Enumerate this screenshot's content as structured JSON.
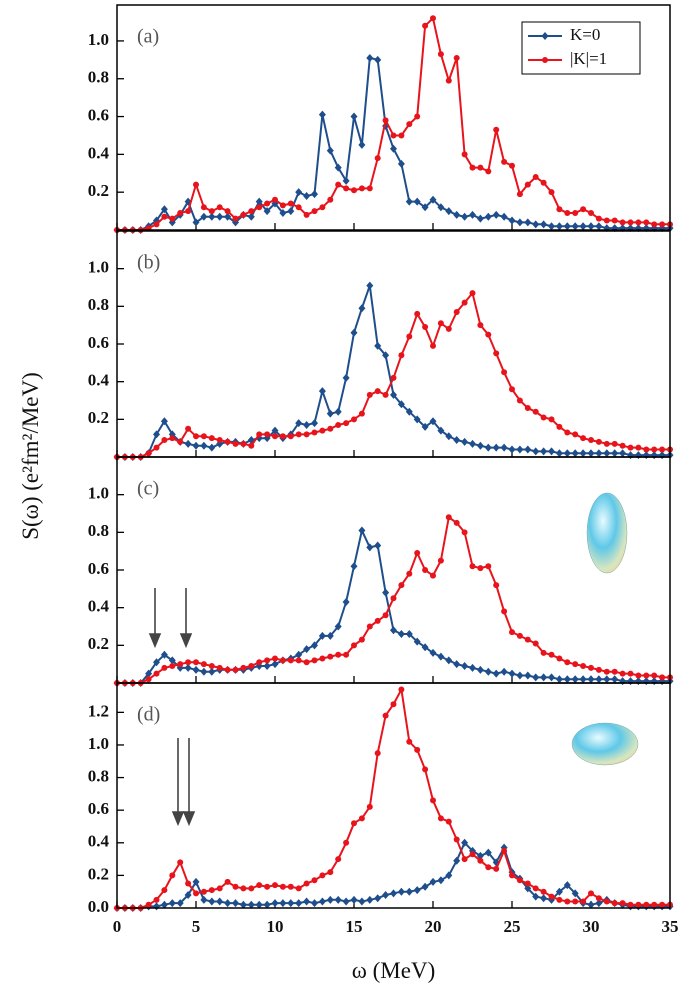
{
  "chart_data": [
    {
      "type": "line",
      "panel_label": "(a)",
      "ylabel": "S(ω) (e²fm²/MeV)",
      "legend": "upper right",
      "x": [
        0,
        0.5,
        1,
        1.5,
        2,
        2.5,
        3,
        3.5,
        4,
        4.5,
        5,
        5.5,
        6,
        6.5,
        7,
        7.5,
        8,
        8.5,
        9,
        9.5,
        10,
        10.5,
        11,
        11.5,
        12,
        12.5,
        13,
        13.5,
        14,
        14.5,
        15,
        15.5,
        16,
        16.5,
        17,
        17.5,
        18,
        18.5,
        19,
        19.5,
        20,
        20.5,
        21,
        21.5,
        22,
        22.5,
        23,
        23.5,
        24,
        24.5,
        25,
        25.5,
        26,
        26.5,
        27,
        27.5,
        28,
        28.5,
        29,
        29.5,
        30,
        30.5,
        31,
        31.5,
        32,
        32.5,
        33,
        33.5,
        34,
        34.5,
        35
      ],
      "xlim": [
        0,
        35
      ],
      "xticks": [
        0,
        5,
        10,
        15,
        20,
        25,
        30,
        35
      ],
      "ylim": [
        0,
        1.19
      ],
      "yticks": [
        0.2,
        0.4,
        0.6,
        0.8,
        {
          "value": 1,
          "label": "1.0"
        }
      ],
      "series": [
        {
          "name": "K=0",
          "color": "#1f4e8c",
          "marker": "diamond",
          "values": [
            0,
            0,
            0,
            0,
            0.02,
            0.05,
            0.11,
            0.04,
            0.08,
            0.15,
            0.04,
            0.07,
            0.07,
            0.07,
            0.07,
            0.04,
            0.08,
            0.07,
            0.15,
            0.1,
            0.14,
            0.09,
            0.1,
            0.2,
            0.18,
            0.19,
            0.61,
            0.42,
            0.33,
            0.26,
            0.6,
            0.45,
            0.91,
            0.9,
            0.55,
            0.43,
            0.35,
            0.15,
            0.15,
            0.12,
            0.16,
            0.12,
            0.1,
            0.08,
            0.07,
            0.08,
            0.06,
            0.07,
            0.08,
            0.07,
            0.05,
            0.04,
            0.04,
            0.03,
            0.03,
            0.02,
            0.02,
            0.02,
            0.02,
            0.02,
            0.02,
            0.02,
            0.01,
            0.01,
            0.01,
            0.01,
            0.01,
            0.01,
            0.01,
            0.01,
            0.01
          ]
        },
        {
          "name": "|K|=1",
          "color": "#e8141c",
          "marker": "circle",
          "values": [
            0,
            0,
            0,
            0,
            0.01,
            0.03,
            0.07,
            0.06,
            0.09,
            0.1,
            0.24,
            0.12,
            0.1,
            0.12,
            0.1,
            0.06,
            0.08,
            0.1,
            0.12,
            0.14,
            0.16,
            0.13,
            0.14,
            0.12,
            0.08,
            0.1,
            0.12,
            0.16,
            0.24,
            0.22,
            0.21,
            0.22,
            0.22,
            0.38,
            0.58,
            0.5,
            0.5,
            0.56,
            0.6,
            1.08,
            1.12,
            0.93,
            0.79,
            0.91,
            0.4,
            0.33,
            0.33,
            0.31,
            0.53,
            0.36,
            0.34,
            0.19,
            0.24,
            0.28,
            0.25,
            0.2,
            0.11,
            0.09,
            0.09,
            0.11,
            0.09,
            0.06,
            0.05,
            0.05,
            0.04,
            0.04,
            0.04,
            0.04,
            0.03,
            0.03,
            0.03
          ]
        }
      ]
    },
    {
      "type": "line",
      "panel_label": "(b)",
      "x": [
        0,
        0.5,
        1,
        1.5,
        2,
        2.5,
        3,
        3.5,
        4,
        4.5,
        5,
        5.5,
        6,
        6.5,
        7,
        7.5,
        8,
        8.5,
        9,
        9.5,
        10,
        10.5,
        11,
        11.5,
        12,
        12.5,
        13,
        13.5,
        14,
        14.5,
        15,
        15.5,
        16,
        16.5,
        17,
        17.5,
        18,
        18.5,
        19,
        19.5,
        20,
        20.5,
        21,
        21.5,
        22,
        22.5,
        23,
        23.5,
        24,
        24.5,
        25,
        25.5,
        26,
        26.5,
        27,
        27.5,
        28,
        28.5,
        29,
        29.5,
        30,
        30.5,
        31,
        31.5,
        32,
        32.5,
        33,
        33.5,
        34,
        34.5,
        35
      ],
      "xlim": [
        0,
        35
      ],
      "xticks": [
        0,
        5,
        10,
        15,
        20,
        25,
        30,
        35
      ],
      "ylim": [
        0,
        1.2
      ],
      "yticks": [
        0.2,
        0.4,
        0.6,
        0.8,
        {
          "value": 1,
          "label": "1.0"
        }
      ],
      "series": [
        {
          "color": "#1f4e8c",
          "marker": "diamond",
          "values": [
            0,
            0,
            0,
            0,
            0.02,
            0.12,
            0.19,
            0.12,
            0.08,
            0.07,
            0.06,
            0.06,
            0.05,
            0.07,
            0.08,
            0.08,
            0.07,
            0.09,
            0.1,
            0.1,
            0.14,
            0.1,
            0.12,
            0.18,
            0.17,
            0.18,
            0.35,
            0.23,
            0.24,
            0.42,
            0.66,
            0.79,
            0.91,
            0.59,
            0.54,
            0.33,
            0.28,
            0.24,
            0.2,
            0.16,
            0.19,
            0.14,
            0.11,
            0.09,
            0.08,
            0.07,
            0.06,
            0.05,
            0.05,
            0.05,
            0.04,
            0.04,
            0.04,
            0.03,
            0.03,
            0.03,
            0.02,
            0.02,
            0.02,
            0.02,
            0.02,
            0.02,
            0.02,
            0.02,
            0.02,
            0.01,
            0.01,
            0.01,
            0.01,
            0.01,
            0.01
          ]
        },
        {
          "color": "#e8141c",
          "marker": "circle",
          "values": [
            0,
            0,
            0,
            0,
            0.02,
            0.05,
            0.09,
            0.1,
            0.08,
            0.15,
            0.11,
            0.11,
            0.1,
            0.09,
            0.08,
            0.07,
            0.07,
            0.06,
            0.12,
            0.12,
            0.11,
            0.11,
            0.11,
            0.12,
            0.12,
            0.13,
            0.14,
            0.15,
            0.17,
            0.18,
            0.2,
            0.23,
            0.33,
            0.35,
            0.33,
            0.42,
            0.54,
            0.64,
            0.76,
            0.69,
            0.59,
            0.71,
            0.68,
            0.77,
            0.82,
            0.87,
            0.7,
            0.65,
            0.55,
            0.45,
            0.36,
            0.3,
            0.26,
            0.24,
            0.21,
            0.2,
            0.16,
            0.13,
            0.12,
            0.1,
            0.09,
            0.08,
            0.07,
            0.07,
            0.06,
            0.05,
            0.05,
            0.04,
            0.04,
            0.04,
            0.04
          ]
        }
      ]
    },
    {
      "type": "line",
      "panel_label": "(c)",
      "x": [
        0,
        0.5,
        1,
        1.5,
        2,
        2.5,
        3,
        3.5,
        4,
        4.5,
        5,
        5.5,
        6,
        6.5,
        7,
        7.5,
        8,
        8.5,
        9,
        9.5,
        10,
        10.5,
        11,
        11.5,
        12,
        12.5,
        13,
        13.5,
        14,
        14.5,
        15,
        15.5,
        16,
        16.5,
        17,
        17.5,
        18,
        18.5,
        19,
        19.5,
        20,
        20.5,
        21,
        21.5,
        22,
        22.5,
        23,
        23.5,
        24,
        24.5,
        25,
        25.5,
        26,
        26.5,
        27,
        27.5,
        28,
        28.5,
        29,
        29.5,
        30,
        30.5,
        31,
        31.5,
        32,
        32.5,
        33,
        33.5,
        34,
        34.5,
        35
      ],
      "xlim": [
        0,
        35
      ],
      "xticks": [
        0,
        5,
        10,
        15,
        20,
        25,
        30,
        35
      ],
      "ylim": [
        0,
        1.2
      ],
      "yticks": [
        0.2,
        0.4,
        0.6,
        0.8,
        {
          "value": 1,
          "label": "1.0"
        }
      ],
      "series": [
        {
          "color": "#1f4e8c",
          "marker": "diamond",
          "values": [
            0,
            0,
            0,
            0,
            0.05,
            0.11,
            0.15,
            0.12,
            0.08,
            0.08,
            0.07,
            0.06,
            0.06,
            0.07,
            0.07,
            0.07,
            0.07,
            0.08,
            0.09,
            0.09,
            0.1,
            0.12,
            0.13,
            0.15,
            0.18,
            0.2,
            0.25,
            0.25,
            0.3,
            0.43,
            0.62,
            0.81,
            0.72,
            0.73,
            0.48,
            0.28,
            0.26,
            0.26,
            0.22,
            0.19,
            0.16,
            0.14,
            0.12,
            0.1,
            0.09,
            0.08,
            0.07,
            0.06,
            0.05,
            0.06,
            0.05,
            0.04,
            0.04,
            0.03,
            0.03,
            0.03,
            0.02,
            0.02,
            0.02,
            0.02,
            0.02,
            0.02,
            0.02,
            0.02,
            0.01,
            0.01,
            0.01,
            0.01,
            0.01,
            0.01,
            0.01
          ]
        },
        {
          "color": "#e8141c",
          "marker": "circle",
          "values": [
            0,
            0,
            0,
            0,
            0.02,
            0.05,
            0.08,
            0.09,
            0.1,
            0.11,
            0.11,
            0.1,
            0.09,
            0.08,
            0.07,
            0.07,
            0.08,
            0.09,
            0.11,
            0.12,
            0.13,
            0.12,
            0.12,
            0.12,
            0.11,
            0.12,
            0.13,
            0.14,
            0.15,
            0.15,
            0.2,
            0.23,
            0.3,
            0.33,
            0.36,
            0.45,
            0.52,
            0.58,
            0.69,
            0.6,
            0.57,
            0.65,
            0.88,
            0.85,
            0.8,
            0.62,
            0.61,
            0.62,
            0.52,
            0.38,
            0.27,
            0.25,
            0.23,
            0.21,
            0.16,
            0.15,
            0.13,
            0.11,
            0.1,
            0.09,
            0.08,
            0.07,
            0.06,
            0.06,
            0.05,
            0.05,
            0.04,
            0.04,
            0.04,
            0.03,
            0.03
          ]
        }
      ]
    },
    {
      "type": "line",
      "panel_label": "(d)",
      "xlabel": "ω (MeV)",
      "x": [
        0,
        0.5,
        1,
        1.5,
        2,
        2.5,
        3,
        3.5,
        4,
        4.5,
        5,
        5.5,
        6,
        6.5,
        7,
        7.5,
        8,
        8.5,
        9,
        9.5,
        10,
        10.5,
        11,
        11.5,
        12,
        12.5,
        13,
        13.5,
        14,
        14.5,
        15,
        15.5,
        16,
        16.5,
        17,
        17.5,
        18,
        18.5,
        19,
        19.5,
        20,
        20.5,
        21,
        21.5,
        22,
        22.5,
        23,
        23.5,
        24,
        24.5,
        25,
        25.5,
        26,
        26.5,
        27,
        27.5,
        28,
        28.5,
        29,
        29.5,
        30,
        30.5,
        31,
        31.5,
        32,
        32.5,
        33,
        33.5,
        34,
        34.5,
        35
      ],
      "xlim": [
        0,
        35
      ],
      "xticks": [
        0,
        5,
        10,
        15,
        20,
        25,
        30,
        35
      ],
      "ylim": [
        0,
        1.38
      ],
      "yticks": [
        {
          "value": 0,
          "label": "0.0"
        },
        0.2,
        0.4,
        0.6,
        0.8,
        {
          "value": 1,
          "label": "1.0"
        },
        1.2
      ],
      "series": [
        {
          "color": "#1f4e8c",
          "marker": "diamond",
          "values": [
            0,
            0,
            0,
            0,
            0.01,
            0.01,
            0.02,
            0.03,
            0.03,
            0.08,
            0.16,
            0.05,
            0.04,
            0.04,
            0.03,
            0.03,
            0.02,
            0.02,
            0.02,
            0.02,
            0.03,
            0.03,
            0.03,
            0.03,
            0.04,
            0.03,
            0.04,
            0.05,
            0.05,
            0.04,
            0.05,
            0.04,
            0.05,
            0.06,
            0.08,
            0.09,
            0.1,
            0.1,
            0.11,
            0.13,
            0.16,
            0.17,
            0.2,
            0.29,
            0.4,
            0.35,
            0.32,
            0.34,
            0.28,
            0.37,
            0.22,
            0.18,
            0.12,
            0.07,
            0.06,
            0.05,
            0.1,
            0.14,
            0.09,
            0.03,
            0.02,
            0.03,
            0.05,
            0.03,
            0.02,
            0.01,
            0.01,
            0.01,
            0.01,
            0.01,
            0.01
          ]
        },
        {
          "color": "#e8141c",
          "marker": "circle",
          "values": [
            0,
            0,
            0,
            0,
            0.02,
            0.05,
            0.11,
            0.2,
            0.28,
            0.15,
            0.09,
            0.1,
            0.11,
            0.12,
            0.16,
            0.13,
            0.12,
            0.12,
            0.14,
            0.13,
            0.14,
            0.13,
            0.13,
            0.12,
            0.15,
            0.17,
            0.2,
            0.22,
            0.3,
            0.4,
            0.52,
            0.55,
            0.62,
            0.95,
            1.18,
            1.25,
            1.34,
            1.02,
            0.97,
            0.85,
            0.66,
            0.55,
            0.53,
            0.42,
            0.3,
            0.33,
            0.29,
            0.25,
            0.24,
            0.35,
            0.2,
            0.17,
            0.15,
            0.12,
            0.1,
            0.07,
            0.05,
            0.04,
            0.04,
            0.04,
            0.09,
            0.06,
            0.04,
            0.03,
            0.03,
            0.02,
            0.02,
            0.02,
            0.02,
            0.02,
            0.02
          ]
        }
      ]
    }
  ]
}
